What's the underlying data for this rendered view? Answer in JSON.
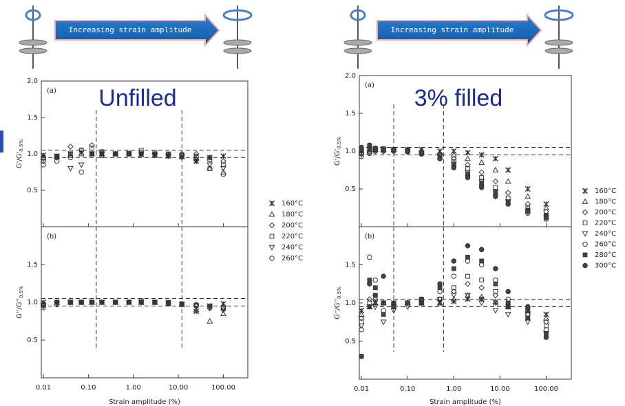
{
  "chart_data": [
    {
      "type": "scatter",
      "title": "Unfilled",
      "banner": "Increasing strain amplitude",
      "xlabel": "Strain amplitude (%)",
      "xscale": "log",
      "xlim": [
        0.009,
        350
      ],
      "xticks": [
        0.01,
        {
          "value": 0.1,
          "label": "0.10"
        },
        {
          "value": 1,
          "label": "1.00"
        },
        {
          "value": 10,
          "label": "10.00"
        },
        {
          "value": 100,
          "label": "100.00"
        }
      ],
      "x": [
        0.01,
        0.02,
        0.04,
        0.07,
        0.12,
        0.2,
        0.4,
        0.8,
        1.5,
        3,
        6,
        12,
        25,
        50,
        100
      ],
      "series": [
        {
          "name": "160°C",
          "marker": "x"
        },
        {
          "name": "180°C",
          "marker": "triangle"
        },
        {
          "name": "200°C",
          "marker": "diamond"
        },
        {
          "name": "220°C",
          "marker": "square"
        },
        {
          "name": "240°C",
          "marker": "triangle-down"
        },
        {
          "name": "260°C",
          "marker": "circle"
        }
      ],
      "subplots": [
        {
          "label": "(a)",
          "ylabel": "G'/G'",
          "ylabel_sub": "0.5%",
          "ylim": [
            0,
            2
          ],
          "yticks": [
            0.5,
            {
              "value": 1,
              "label": "1.0"
            },
            1.5,
            {
              "value": 2,
              "label": "2.0"
            }
          ],
          "hlines": [
            0.95,
            1.05
          ],
          "vlines": [
            0.15,
            12
          ],
          "values": [
            [
              0.98,
              0.97,
              1.0,
              1.02,
              1.0,
              1.0,
              1.0,
              1.0,
              1.0,
              0.99,
              0.98,
              0.97,
              0.9,
              0.95,
              0.97
            ],
            [
              0.95,
              0.96,
              0.98,
              1.0,
              1.0,
              1.0,
              1.0,
              1.0,
              0.99,
              0.98,
              0.97,
              0.96,
              0.93,
              0.8,
              0.75
            ],
            [
              0.9,
              0.95,
              1.1,
              1.05,
              1.12,
              1.02,
              1.0,
              1.0,
              1.0,
              0.99,
              0.98,
              1.0,
              1.0,
              0.95,
              0.9
            ],
            [
              0.95,
              0.97,
              1.0,
              1.05,
              1.08,
              1.03,
              1.0,
              1.01,
              1.05,
              1.02,
              1.0,
              0.98,
              0.97,
              0.92,
              0.85
            ],
            [
              0.93,
              0.95,
              0.8,
              0.85,
              1.0,
              1.0,
              1.0,
              1.0,
              1.0,
              0.98,
              0.97,
              0.95,
              0.9,
              0.85,
              0.8
            ],
            [
              0.85,
              0.9,
              0.95,
              0.75,
              1.0,
              0.98,
              1.0,
              1.0,
              1.02,
              1.0,
              0.99,
              0.98,
              0.95,
              0.8,
              0.72
            ]
          ]
        },
        {
          "label": "(b)",
          "ylabel": "G''/G''",
          "ylabel_sub": "0.5%",
          "ylim": [
            0,
            2
          ],
          "yticks": [
            0.5,
            {
              "value": 1,
              "label": "1.0"
            },
            1.5
          ],
          "hlines": [
            0.95,
            1.05
          ],
          "vlines": [
            0.15,
            12
          ],
          "values": [
            [
              1.0,
              1.0,
              1.0,
              1.0,
              1.0,
              1.0,
              1.0,
              1.0,
              1.0,
              1.0,
              0.99,
              0.97,
              0.88,
              0.95,
              0.98
            ],
            [
              0.98,
              1.0,
              1.0,
              1.0,
              1.0,
              1.0,
              1.0,
              1.0,
              1.0,
              1.0,
              0.98,
              0.97,
              0.9,
              0.75,
              0.85
            ],
            [
              0.95,
              1.0,
              1.0,
              1.0,
              1.0,
              1.0,
              1.0,
              1.0,
              1.0,
              1.0,
              0.98,
              0.97,
              0.95,
              0.92,
              0.9
            ],
            [
              0.97,
              1.0,
              1.0,
              1.0,
              1.0,
              1.0,
              1.0,
              1.0,
              1.02,
              1.0,
              1.0,
              0.98,
              0.96,
              0.95,
              0.93
            ],
            [
              0.96,
              0.98,
              1.0,
              1.0,
              1.0,
              1.0,
              1.0,
              1.0,
              1.0,
              1.0,
              0.99,
              0.97,
              0.95,
              0.93,
              0.92
            ],
            [
              0.93,
              0.97,
              1.0,
              1.0,
              1.0,
              1.0,
              1.0,
              1.0,
              1.0,
              1.0,
              0.99,
              0.98,
              0.97,
              0.95,
              0.92
            ]
          ]
        }
      ]
    },
    {
      "type": "scatter",
      "title": "3% filled",
      "banner": "Increasing strain amplitude",
      "xlabel": "Strain amplitude (%)",
      "xscale": "log",
      "xlim": [
        0.009,
        350
      ],
      "xticks": [
        0.01,
        {
          "value": 0.1,
          "label": "0.10"
        },
        {
          "value": 1,
          "label": "1.00"
        },
        {
          "value": 10,
          "label": "10.00"
        },
        {
          "value": 100,
          "label": "100.00"
        }
      ],
      "x": [
        0.01,
        0.015,
        0.02,
        0.03,
        0.05,
        0.1,
        0.2,
        0.5,
        1,
        2,
        4,
        8,
        15,
        40,
        100
      ],
      "series": [
        {
          "name": "160°C",
          "marker": "x"
        },
        {
          "name": "180°C",
          "marker": "triangle"
        },
        {
          "name": "200°C",
          "marker": "diamond"
        },
        {
          "name": "220°C",
          "marker": "square"
        },
        {
          "name": "240°C",
          "marker": "triangle-down"
        },
        {
          "name": "260°C",
          "marker": "circle"
        },
        {
          "name": "280°C",
          "marker": "filled-square"
        },
        {
          "name": "300°C",
          "marker": "filled-circle"
        }
      ],
      "subplots": [
        {
          "label": "(a)",
          "ylabel": "G'/G'",
          "ylabel_sub": "0.5%",
          "ylim": [
            0,
            2
          ],
          "yticks": [
            0.5,
            {
              "value": 1,
              "label": "1.0"
            },
            1.5,
            {
              "value": 2,
              "label": "2.0"
            }
          ],
          "hlines": [
            0.95,
            1.05
          ],
          "vlines": [
            0.05,
            0.6
          ],
          "values": [
            [
              1.0,
              1.02,
              1.03,
              1.03,
              1.02,
              1.02,
              1.02,
              1.0,
              1.0,
              0.98,
              0.95,
              0.9,
              0.75,
              0.5,
              0.3
            ],
            [
              0.98,
              1.0,
              1.02,
              1.02,
              1.02,
              1.02,
              1.0,
              0.98,
              0.95,
              0.9,
              0.85,
              0.75,
              0.6,
              0.4,
              0.25
            ],
            [
              1.0,
              1.05,
              1.03,
              1.03,
              1.02,
              1.02,
              1.0,
              0.96,
              0.9,
              0.82,
              0.72,
              0.6,
              0.45,
              0.3,
              0.2
            ],
            [
              0.97,
              1.0,
              1.02,
              1.02,
              1.02,
              1.0,
              0.98,
              0.94,
              0.86,
              0.77,
              0.65,
              0.52,
              0.38,
              0.25,
              0.15
            ],
            [
              0.95,
              0.98,
              1.0,
              1.0,
              1.0,
              1.0,
              0.97,
              0.92,
              0.83,
              0.72,
              0.6,
              0.46,
              0.33,
              0.2,
              0.12
            ],
            [
              0.93,
              0.97,
              1.0,
              1.0,
              1.0,
              0.99,
              0.96,
              0.9,
              0.8,
              0.68,
              0.55,
              0.42,
              0.3,
              0.18,
              0.1
            ],
            [
              1.02,
              1.05,
              1.03,
              1.02,
              1.02,
              1.0,
              0.97,
              0.92,
              0.82,
              0.7,
              0.58,
              0.45,
              0.33,
              0.22,
              0.15
            ],
            [
              1.05,
              1.08,
              1.04,
              1.03,
              1.02,
              1.0,
              0.98,
              0.9,
              0.78,
              0.65,
              0.52,
              0.4,
              0.3,
              0.2,
              0.12
            ]
          ]
        },
        {
          "label": "(b)",
          "ylabel": "G''/G''",
          "ylabel_sub": "0.5%",
          "ylim": [
            0,
            2
          ],
          "yticks": [
            0.5,
            {
              "value": 1,
              "label": "1.0"
            },
            1.5
          ],
          "hlines": [
            0.95,
            1.05
          ],
          "vlines": [
            0.05,
            0.6
          ],
          "values": [
            [
              0.9,
              0.95,
              1.0,
              1.0,
              1.0,
              1.0,
              1.0,
              1.0,
              1.02,
              1.05,
              1.05,
              1.0,
              0.95,
              0.9,
              0.85
            ],
            [
              0.85,
              0.95,
              1.0,
              1.0,
              1.0,
              1.0,
              1.0,
              1.0,
              1.05,
              1.1,
              1.08,
              1.02,
              0.95,
              0.9,
              0.8
            ],
            [
              0.8,
              1.05,
              1.05,
              1.0,
              1.0,
              1.0,
              1.0,
              1.05,
              1.15,
              1.25,
              1.2,
              1.1,
              0.95,
              0.85,
              0.75
            ],
            [
              0.75,
              1.0,
              1.1,
              1.0,
              0.98,
              1.0,
              1.0,
              1.05,
              1.2,
              1.35,
              1.3,
              1.15,
              0.98,
              0.85,
              0.7
            ],
            [
              0.7,
              0.95,
              0.95,
              0.75,
              0.9,
              0.95,
              1.0,
              1.05,
              1.1,
              1.1,
              1.0,
              0.9,
              0.85,
              0.75,
              0.6
            ],
            [
              0.65,
              1.6,
              1.3,
              0.9,
              0.95,
              1.0,
              1.05,
              1.15,
              1.35,
              1.55,
              1.5,
              1.3,
              1.05,
              0.9,
              0.65
            ],
            [
              0.3,
              1.3,
              1.2,
              0.85,
              0.95,
              1.0,
              1.05,
              1.2,
              1.45,
              1.6,
              1.55,
              1.25,
              1.0,
              0.8,
              0.6
            ],
            [
              0.3,
              1.25,
              1.1,
              1.35,
              0.95,
              1.0,
              1.05,
              1.25,
              1.55,
              1.75,
              1.7,
              1.45,
              1.15,
              0.95,
              0.55
            ]
          ]
        }
      ]
    }
  ]
}
